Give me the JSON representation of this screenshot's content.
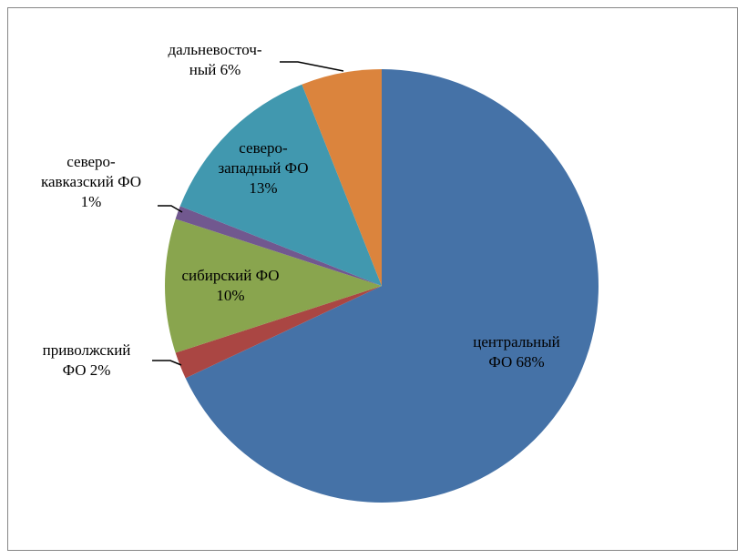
{
  "chart_data": {
    "type": "pie",
    "title": "",
    "start_angle_deg": 0,
    "direction": "clockwise",
    "slices": [
      {
        "name": "центральный ФО",
        "value": 68,
        "color": "#4572A7",
        "label_lines": [
          "центральный",
          "ФО 68%"
        ]
      },
      {
        "name": "приволжский ФО",
        "value": 2,
        "color": "#AA4643",
        "label_lines": [
          "приволжский",
          "ФО 2%"
        ]
      },
      {
        "name": "сибирский ФО",
        "value": 10,
        "color": "#89A54E",
        "label_lines": [
          "сибирский ФО",
          "10%"
        ]
      },
      {
        "name": "северо-кавказский ФО",
        "value": 1,
        "color": "#71588F",
        "label_lines": [
          "северо-",
          "кавказский  ФО",
          "1%"
        ]
      },
      {
        "name": "северо-западный ФО",
        "value": 13,
        "color": "#4198AF",
        "label_lines": [
          "северо-",
          "западный ФО",
          "13%"
        ]
      },
      {
        "name": "дальневосточный ФО",
        "value": 6,
        "color": "#DB843D",
        "label_lines": [
          "дальневосточ-",
          "ный 6%"
        ]
      }
    ]
  }
}
